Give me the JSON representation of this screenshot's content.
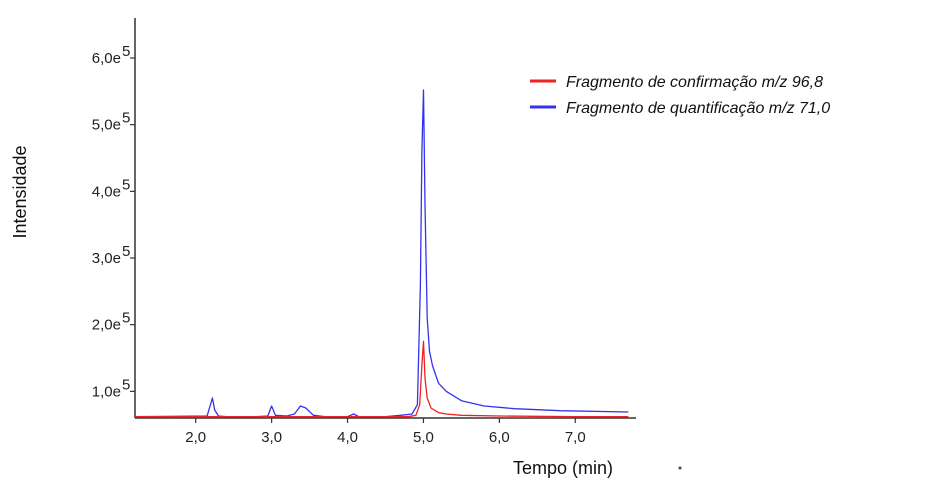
{
  "chart_data": {
    "type": "line",
    "xlabel": "Tempo (min)",
    "ylabel": "Intensidade",
    "xlim": [
      1.2,
      7.8
    ],
    "ylim": [
      0.6,
      6.6
    ],
    "x_ticks": [
      {
        "value": 2.0,
        "label": "2,0"
      },
      {
        "value": 3.0,
        "label": "3,0"
      },
      {
        "value": 4.0,
        "label": "4,0"
      },
      {
        "value": 5.0,
        "label": "5,0"
      },
      {
        "value": 6.0,
        "label": "6,0"
      },
      {
        "value": 7.0,
        "label": "7,0"
      }
    ],
    "y_ticks": [
      {
        "value": 1.0,
        "label": "1,0e",
        "exp": "5"
      },
      {
        "value": 2.0,
        "label": "2,0e",
        "exp": "5"
      },
      {
        "value": 3.0,
        "label": "3,0e",
        "exp": "5"
      },
      {
        "value": 4.0,
        "label": "4,0e",
        "exp": "5"
      },
      {
        "value": 5.0,
        "label": "5,0e",
        "exp": "5"
      },
      {
        "value": 6.0,
        "label": "6,0e",
        "exp": "5"
      }
    ],
    "legend_position": "top-right",
    "series": [
      {
        "name": "Fragmento de confirmação m/z 96,8",
        "color": "#ee2222",
        "x": [
          1.2,
          4.8,
          4.9,
          4.95,
          4.98,
          5.0,
          5.02,
          5.05,
          5.1,
          5.2,
          5.3,
          5.5,
          6.0,
          7.0,
          7.7
        ],
        "y": [
          0.62,
          0.62,
          0.64,
          0.8,
          1.4,
          1.75,
          1.2,
          0.9,
          0.75,
          0.68,
          0.66,
          0.64,
          0.63,
          0.62,
          0.62
        ]
      },
      {
        "name": "Fragmento de quantificação m/z 71,0",
        "color": "#3333ee",
        "x": [
          1.2,
          2.15,
          2.22,
          2.25,
          2.3,
          2.4,
          2.8,
          2.95,
          3.0,
          3.05,
          3.2,
          3.3,
          3.38,
          3.45,
          3.55,
          3.7,
          4.0,
          4.08,
          4.15,
          4.5,
          4.7,
          4.85,
          4.92,
          4.96,
          4.98,
          5.0,
          5.02,
          5.05,
          5.08,
          5.12,
          5.2,
          5.3,
          5.5,
          5.8,
          6.2,
          6.8,
          7.7
        ],
        "y": [
          0.62,
          0.63,
          0.9,
          0.72,
          0.63,
          0.62,
          0.62,
          0.63,
          0.78,
          0.64,
          0.63,
          0.66,
          0.78,
          0.75,
          0.64,
          0.62,
          0.62,
          0.66,
          0.62,
          0.62,
          0.64,
          0.66,
          0.8,
          2.6,
          4.6,
          5.52,
          3.8,
          2.1,
          1.6,
          1.38,
          1.12,
          1.0,
          0.86,
          0.78,
          0.74,
          0.71,
          0.69
        ]
      }
    ]
  }
}
